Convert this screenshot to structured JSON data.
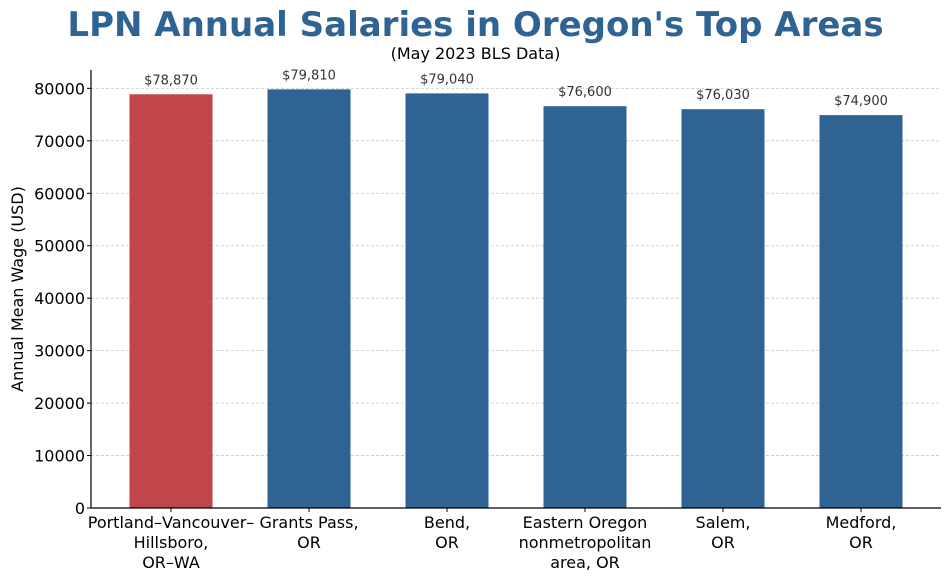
{
  "chart_data": {
    "type": "bar",
    "title": "LPN Annual Salaries in Oregon's Top Areas",
    "subtitle": "(May 2023 BLS Data)",
    "xlabel": "",
    "ylabel": "Annual Mean Wage (USD)",
    "categories": [
      [
        "Portland–Vancouver–",
        "Hillsboro,",
        "OR–WA"
      ],
      [
        "Grants Pass,",
        "OR"
      ],
      [
        "Bend,",
        "OR"
      ],
      [
        "Eastern Oregon",
        "nonmetropolitan",
        "area, OR"
      ],
      [
        "Salem,",
        "OR"
      ],
      [
        "Medford,",
        "OR"
      ]
    ],
    "values": [
      78870,
      79810,
      79040,
      76600,
      76030,
      74900
    ],
    "value_labels": [
      "$78,870",
      "$79,810",
      "$79,040",
      "$76,600",
      "$76,030",
      "$74,900"
    ],
    "bar_colors": [
      "#c0464a",
      "#2e6393",
      "#2e6393",
      "#2e6393",
      "#2e6393",
      "#2e6393"
    ],
    "ylim": [
      0,
      83500
    ],
    "yticks": [
      0,
      10000,
      20000,
      30000,
      40000,
      50000,
      60000,
      70000,
      80000
    ],
    "grid": "horizontal-dashed",
    "legend": "none"
  },
  "colors": {
    "title": "#2e6393",
    "highlight_bar": "#c0464a",
    "default_bar": "#2e6393",
    "grid": "#c8c8c8",
    "axis": "#000000"
  }
}
